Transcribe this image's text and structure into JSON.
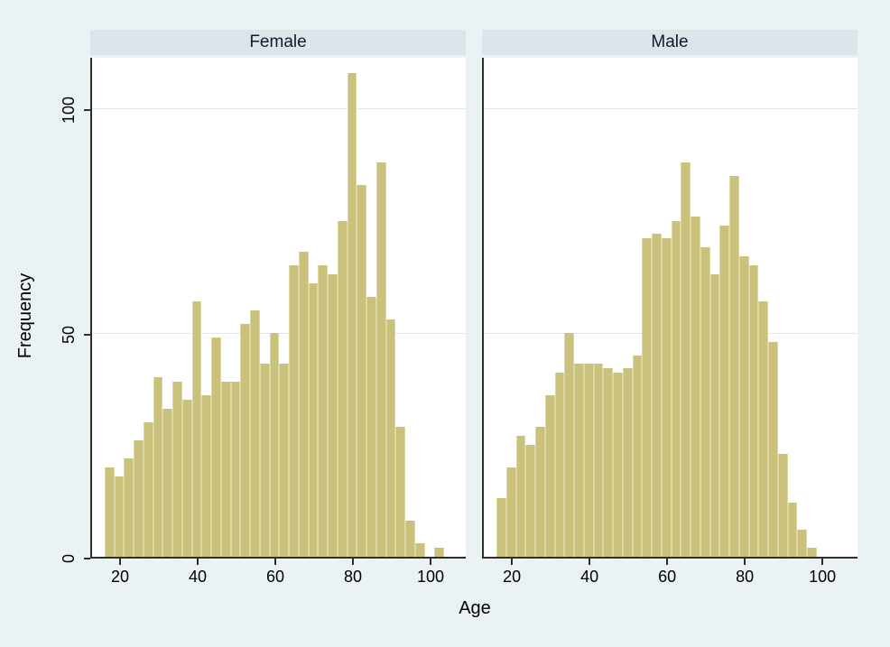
{
  "colors": {
    "background": "#eaf2f3",
    "strip_background": "#dbe5ec",
    "plot_background": "#ffffff",
    "gridline": "#dbe7ee",
    "axis": "#2e2e2e",
    "bar_fill": "#c9c17c",
    "bar_edge": "#ddd7a4",
    "text": "#000000",
    "strip_text": "#121a2b"
  },
  "chart_data": {
    "type": "bar",
    "subtype": "faceted_histogram",
    "title": "",
    "xlabel": "Age",
    "ylabel": "Frequency",
    "bin_start": 16,
    "bin_width": 2.5,
    "xticks": [
      20,
      40,
      60,
      80,
      100
    ],
    "yticks": [
      0,
      50,
      100
    ],
    "xlim": [
      12,
      109
    ],
    "ylim": [
      0,
      111
    ],
    "grid": "on",
    "legend": "none",
    "panels": [
      {
        "title": "Female",
        "values": [
          20,
          18,
          22,
          26,
          30,
          40,
          33,
          39,
          35,
          57,
          36,
          49,
          39,
          39,
          52,
          55,
          43,
          50,
          43,
          65,
          68,
          61,
          65,
          63,
          75,
          108,
          83,
          58,
          88,
          53,
          29,
          8,
          3,
          0,
          2
        ]
      },
      {
        "title": "Male",
        "values": [
          13,
          20,
          27,
          25,
          29,
          36,
          41,
          50,
          43,
          43,
          43,
          42,
          41,
          42,
          45,
          71,
          72,
          71,
          75,
          88,
          76,
          69,
          63,
          74,
          85,
          67,
          65,
          57,
          48,
          23,
          12,
          6,
          2
        ]
      }
    ]
  }
}
